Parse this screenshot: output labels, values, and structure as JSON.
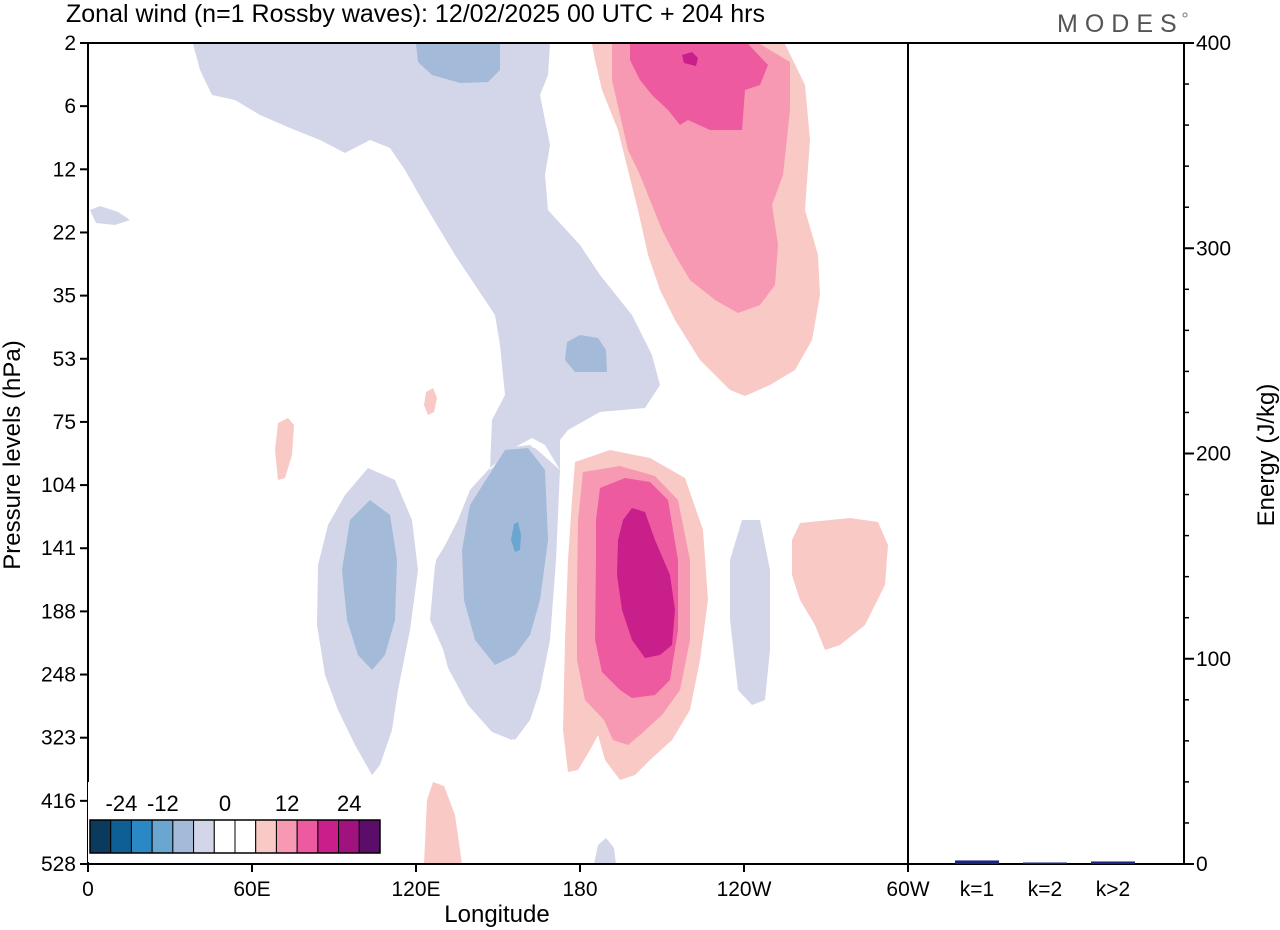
{
  "chart_data": {
    "type": "heatmap",
    "title": "Zonal wind (n=1 Rossby waves):  12/02/2025  00 UTC  + 204 hrs",
    "brand": "MODES",
    "xlabel": "Longitude",
    "ylabel": "Pressure levels (hPa)",
    "x_ticks": [
      "0",
      "60E",
      "120E",
      "180",
      "120W",
      "60W"
    ],
    "y_ticks": [
      "2",
      "6",
      "12",
      "22",
      "35",
      "53",
      "75",
      "104",
      "141",
      "188",
      "248",
      "323",
      "416",
      "528"
    ],
    "legend": {
      "labels": [
        "-24",
        "-12",
        "0",
        "12",
        "24"
      ],
      "colors": [
        "#0b3b5c",
        "#0e5f93",
        "#2a88c4",
        "#6aa6d0",
        "#a3bad9",
        "#d3d6e8",
        "#ffffff",
        "#ffffff",
        "#f9c9c6",
        "#f799b2",
        "#ee5a9f",
        "#c91f8b",
        "#a0137f",
        "#5c0d6a"
      ]
    },
    "energy": {
      "ylabel": "Energy (J/kg)",
      "ylim": [
        0,
        400
      ],
      "y_ticks": [
        "0",
        "100",
        "200",
        "300",
        "400"
      ],
      "categories": [
        "k=1",
        "k=2",
        "k>2"
      ],
      "values": [
        1,
        0,
        0.5
      ],
      "colors": [
        "#1a237e",
        "#1a237e",
        "#1a237e"
      ]
    }
  }
}
